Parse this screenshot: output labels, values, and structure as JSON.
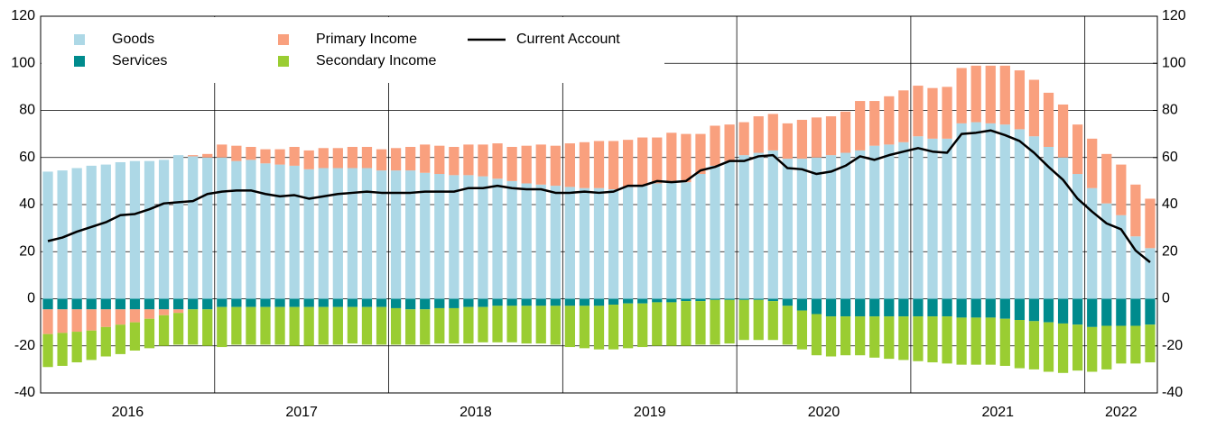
{
  "chart_data": {
    "type": "stacked_bar_line",
    "categories": [
      "2016",
      "2017",
      "2018",
      "2019",
      "2020",
      "2021",
      "2022"
    ],
    "ylim": [
      -40,
      120
    ],
    "yticks": [
      -40,
      -20,
      0,
      20,
      40,
      60,
      80,
      100,
      120
    ],
    "y2lim": [
      -40,
      120
    ],
    "y2ticks": [
      -40,
      -20,
      0,
      20,
      40,
      60,
      80,
      100,
      120
    ],
    "grid": true,
    "legend": "upper left",
    "series": [
      {
        "name": "Goods",
        "kind": "bar",
        "color": "#add8e6",
        "values": [
          [
            54,
            54.5,
            55.5,
            56.5,
            57,
            58,
            58.5,
            58.5,
            59,
            61,
            60.5,
            60
          ],
          [
            60,
            58.5,
            59,
            57.5,
            57,
            56.5,
            55,
            55.5,
            55.5,
            55.5,
            55.5,
            54.5
          ],
          [
            54.5,
            54.5,
            53.5,
            53,
            52.5,
            52.5,
            52,
            51,
            50,
            49,
            48.5,
            48
          ],
          [
            47.5,
            47,
            47,
            46.5,
            47.5,
            48,
            49,
            50,
            49.5,
            53,
            56.5,
            58.5
          ],
          [
            61,
            62,
            63,
            59.5,
            59.5,
            60,
            61,
            62,
            63,
            65,
            65.5,
            66.5
          ],
          [
            69,
            68,
            68,
            74.5,
            75,
            74.5,
            74,
            72,
            69,
            64.5,
            60,
            53
          ],
          [
            47,
            40.5,
            35.5,
            26.5,
            21.5
          ]
        ]
      },
      {
        "name": "Services",
        "kind": "bar",
        "color": "#008b8d",
        "values": [
          [
            -4.5,
            -4.5,
            -4.5,
            -4.5,
            -4.5,
            -4.5,
            -4.5,
            -4.5,
            -4.5,
            -4.5,
            -4.5,
            -4.5
          ],
          [
            -3.5,
            -3.5,
            -3.5,
            -3.5,
            -3.5,
            -3.5,
            -3.5,
            -3.5,
            -3.5,
            -3.5,
            -3.5,
            -3.5
          ],
          [
            -4,
            -4.5,
            -4.5,
            -4,
            -4,
            -3.5,
            -3.5,
            -3,
            -3,
            -3,
            -3,
            -3
          ],
          [
            -3,
            -3,
            -3,
            -2.5,
            -2,
            -2,
            -1.5,
            -1.5,
            -1,
            -1,
            -0.5,
            -0.5
          ],
          [
            -0.5,
            -0.5,
            -1,
            -3,
            -5,
            -6.5,
            -7.5,
            -7.5,
            -7.5,
            -7.5,
            -7.5,
            -7.5
          ],
          [
            -7.5,
            -7.5,
            -7.5,
            -8,
            -8,
            -8,
            -8.5,
            -9,
            -9.5,
            -10,
            -10.5,
            -11
          ],
          [
            -12,
            -11.5,
            -11.5,
            -11.5,
            -11
          ]
        ]
      },
      {
        "name": "Primary Income",
        "kind": "bar",
        "color": "#f9a07e",
        "values": [
          [
            -10.5,
            -10,
            -9.5,
            -9,
            -7.5,
            -6.5,
            -5.5,
            -4,
            -2.5,
            -1.5,
            0.5,
            1.5
          ],
          [
            5.5,
            6.5,
            5.5,
            6,
            6.5,
            8,
            8,
            8.5,
            8.5,
            9,
            9,
            9
          ],
          [
            9.5,
            10,
            12,
            12,
            12,
            13,
            13.5,
            15,
            14.5,
            16,
            17,
            17
          ],
          [
            18.5,
            19.5,
            20,
            20.5,
            20,
            20.5,
            19.5,
            20.5,
            20.5,
            17,
            17,
            15.5
          ],
          [
            14,
            15.5,
            15.5,
            15,
            16.5,
            17,
            16.5,
            17.5,
            21,
            19,
            20.5,
            22
          ],
          [
            21.5,
            21.5,
            22,
            23.5,
            24,
            24.5,
            25,
            25,
            24,
            23,
            22.5,
            21
          ],
          [
            21,
            21,
            21.5,
            22,
            21
          ]
        ]
      },
      {
        "name": "Secondary Income",
        "kind": "bar",
        "color": "#9acd32",
        "values": [
          [
            -14,
            -14,
            -13,
            -12.5,
            -12.5,
            -12.5,
            -12,
            -12.5,
            -13,
            -13.5,
            -15,
            -15.5
          ],
          [
            -17,
            -16,
            -16,
            -16,
            -16,
            -16.5,
            -16.5,
            -16,
            -16,
            -15.5,
            -16,
            -16
          ],
          [
            -15.5,
            -15,
            -15,
            -15,
            -15,
            -15.5,
            -15,
            -15.5,
            -15.5,
            -16,
            -16,
            -16.5
          ],
          [
            -17.5,
            -18,
            -18.5,
            -19,
            -19,
            -18.5,
            -18.5,
            -18.5,
            -19,
            -18.5,
            -19,
            -18.5
          ],
          [
            -17,
            -17,
            -16.5,
            -16.5,
            -16.5,
            -17.5,
            -17,
            -16.5,
            -16.5,
            -17.5,
            -18,
            -18.5
          ],
          [
            -19,
            -19.5,
            -20,
            -20,
            -20,
            -20,
            -20,
            -20.5,
            -20.5,
            -21,
            -21,
            -19.5
          ],
          [
            -19,
            -18.5,
            -16,
            -16,
            -16
          ]
        ]
      },
      {
        "name": "Current Account",
        "kind": "line",
        "color": "#000000",
        "values": [
          [
            24.5,
            26,
            28.5,
            30.5,
            32.5,
            35.5,
            36,
            38,
            40.5,
            41,
            41.5,
            44.5
          ],
          [
            45.5,
            46,
            46,
            44.5,
            43.5,
            44,
            42.5,
            43.5,
            44.5,
            45,
            45.5,
            45
          ],
          [
            45,
            45,
            45.5,
            45.5,
            45.5,
            47,
            47,
            48,
            47,
            46.5,
            46.5,
            45
          ],
          [
            45,
            45.5,
            45,
            45.5,
            48,
            48,
            50,
            49.5,
            50,
            54.5,
            56,
            58.5
          ],
          [
            58.5,
            60.5,
            61,
            55.5,
            55,
            53,
            54,
            56.5,
            60.5,
            59,
            61,
            62.5
          ],
          [
            64,
            62.5,
            62,
            70,
            70.5,
            71.5,
            69.5,
            67,
            62,
            56,
            50.5,
            42.5
          ],
          [
            37,
            32,
            29.5,
            20.5,
            15.5
          ]
        ]
      }
    ]
  }
}
